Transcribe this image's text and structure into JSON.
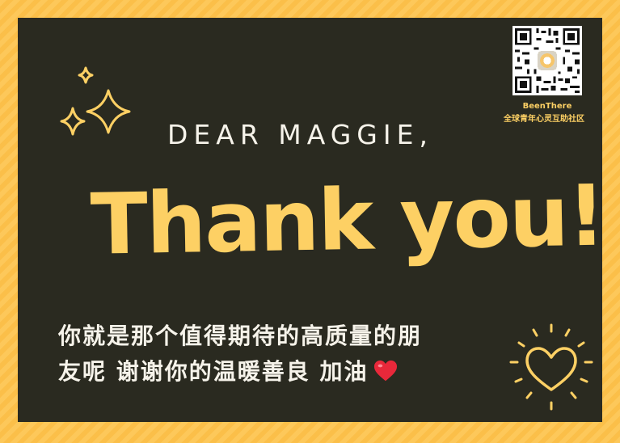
{
  "card": {
    "greeting": "DEAR MAGGIE,",
    "headline": "Thank you!",
    "message_line1": "你就是那个值得期待的高质量的朋",
    "message_line2": "友呢 谢谢你的温暖善良 加油"
  },
  "branding": {
    "name": "BeenThere",
    "tagline": "全球青年心灵互助社区"
  },
  "colors": {
    "background": "#fdc85a",
    "card": "#2a2a20",
    "accent": "#fdd064",
    "text": "#f6f3ea",
    "heart": "#e8283a"
  },
  "icons": [
    "sparkle-icon",
    "heart-icon",
    "qr-code"
  ]
}
